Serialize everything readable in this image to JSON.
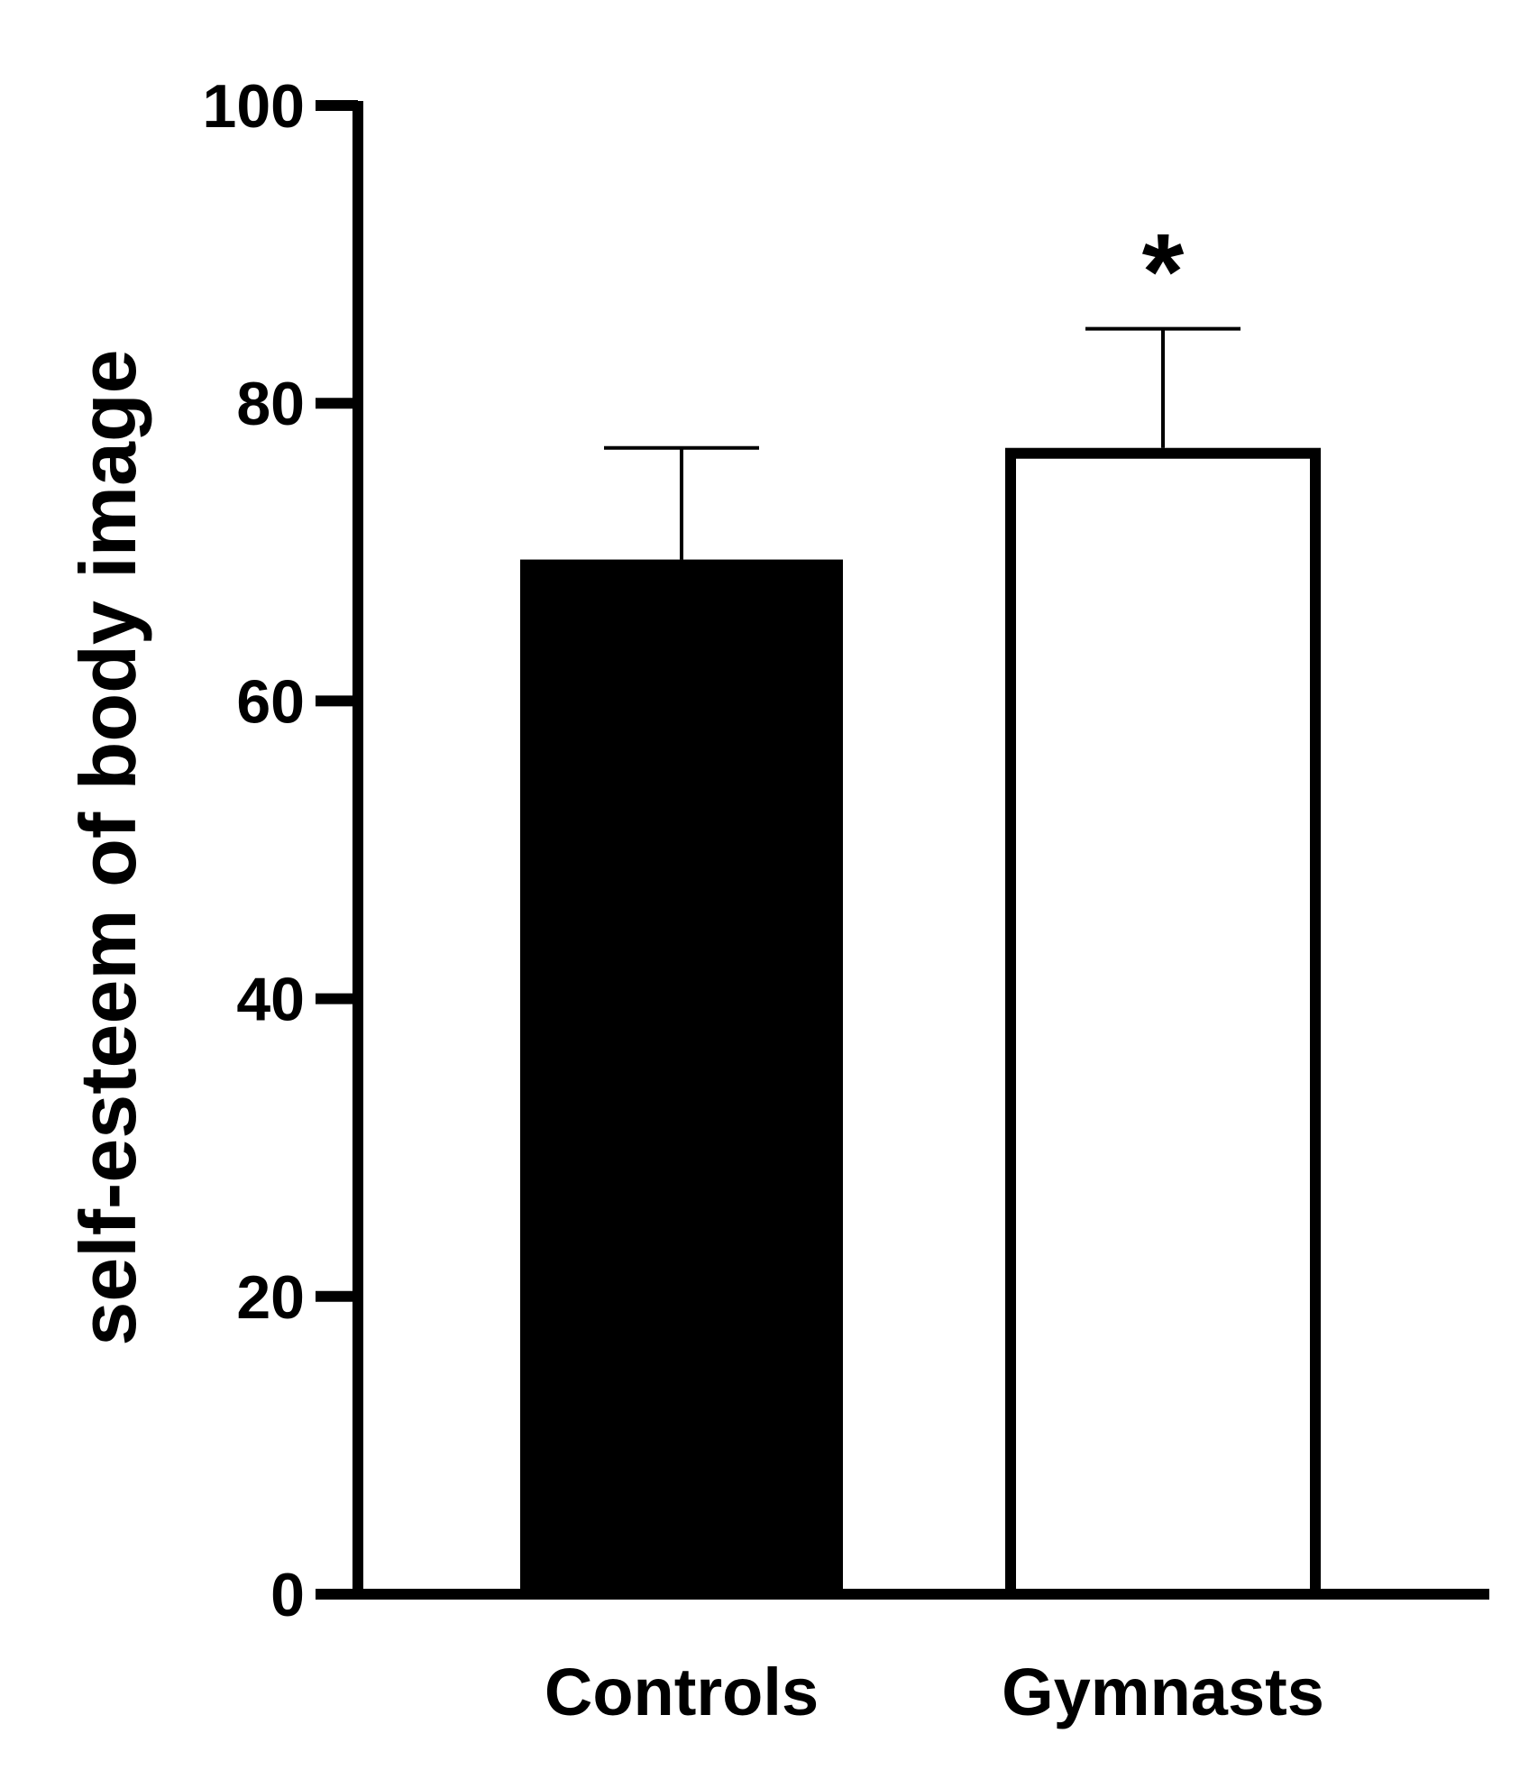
{
  "chart_data": {
    "type": "bar",
    "title": "",
    "xlabel": "",
    "ylabel": "self-esteem of body image",
    "ylim": [
      0,
      100
    ],
    "yticks": [
      "0",
      "20",
      "40",
      "60",
      "80",
      "100"
    ],
    "grid": false,
    "legend": "none",
    "categories": [
      "Controls",
      "Gymnasts"
    ],
    "values": [
      69.5,
      77
    ],
    "error_upper": [
      7.5,
      8
    ],
    "annotations": [
      "",
      "*"
    ],
    "bar_fills": [
      "#000000",
      "#ffffff"
    ],
    "bar_edge": "#000000"
  }
}
